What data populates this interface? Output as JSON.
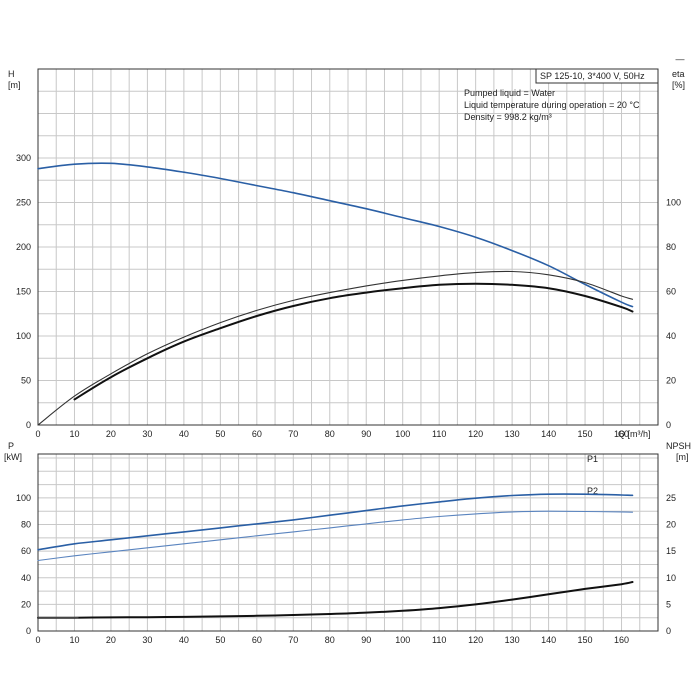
{
  "corner_mark": "—",
  "chart_data": [
    {
      "type": "line",
      "title": "SP 125-10, 3*400 V, 50Hz",
      "notes": [
        "Pumped liquid = Water",
        "Liquid temperature during operation = 20 °C",
        "Density = 998.2 kg/m³"
      ],
      "xlabel": "Q [m³/h]",
      "ylabel": [
        "H",
        "[m]"
      ],
      "y2label": [
        "eta",
        "[%]"
      ],
      "xlim": [
        0,
        170
      ],
      "ylim": [
        0,
        400
      ],
      "y2lim": [
        0,
        160
      ],
      "xticks": [
        0,
        10,
        20,
        30,
        40,
        50,
        60,
        70,
        80,
        90,
        100,
        110,
        120,
        130,
        140,
        150,
        160
      ],
      "yticks": [
        0,
        50,
        100,
        150,
        200,
        250,
        300
      ],
      "y2ticks": [
        0,
        20,
        40,
        60,
        80,
        100
      ],
      "grid": true,
      "series": [
        {
          "axis": "y",
          "color": "#2a5fa5",
          "width": 1.6,
          "x": [
            0,
            10,
            20,
            30,
            40,
            50,
            60,
            70,
            80,
            90,
            100,
            110,
            120,
            130,
            140,
            150,
            160,
            163
          ],
          "y": [
            288,
            293,
            294,
            290,
            284,
            277,
            269,
            261,
            252,
            243,
            233,
            223,
            211,
            196,
            179,
            158,
            138,
            133
          ]
        },
        {
          "axis": "y2",
          "color": "#333333",
          "width": 1.1,
          "x": [
            0,
            10,
            20,
            30,
            40,
            50,
            60,
            70,
            80,
            90,
            100,
            110,
            120,
            130,
            140,
            150,
            160,
            163
          ],
          "y": [
            0,
            13,
            23,
            32,
            39.5,
            46,
            51.5,
            56,
            59.5,
            62.5,
            65,
            67,
            68.5,
            69,
            67.5,
            64,
            58,
            56.5
          ]
        },
        {
          "axis": "y2",
          "color": "#111111",
          "width": 2.0,
          "x": [
            10,
            20,
            30,
            40,
            50,
            60,
            70,
            80,
            90,
            100,
            110,
            120,
            130,
            140,
            150,
            160,
            163
          ],
          "y": [
            11.5,
            21.5,
            30,
            37.5,
            43.5,
            49,
            53.5,
            57,
            59.5,
            61.5,
            63,
            63.5,
            63,
            61.5,
            58,
            53,
            51
          ]
        }
      ]
    },
    {
      "type": "line",
      "xlabel": "",
      "ylabel": [
        "P",
        "[kW]"
      ],
      "y2label": [
        "NPSH",
        "[m]"
      ],
      "xlim": [
        0,
        170
      ],
      "ylim": [
        0,
        133
      ],
      "y2lim": [
        0,
        33.25
      ],
      "xticks": [
        0,
        10,
        20,
        30,
        40,
        50,
        60,
        70,
        80,
        90,
        100,
        110,
        120,
        130,
        140,
        150,
        160
      ],
      "yticks": [
        0,
        20,
        40,
        60,
        80,
        100
      ],
      "y2ticks": [
        0,
        5,
        10,
        15,
        20,
        25
      ],
      "grid": true,
      "series": [
        {
          "name": "P1",
          "axis": "y",
          "color": "#2a5fa5",
          "width": 1.6,
          "x": [
            0,
            10,
            20,
            30,
            40,
            50,
            60,
            70,
            80,
            90,
            100,
            110,
            120,
            130,
            140,
            150,
            160,
            163
          ],
          "y": [
            61,
            65.5,
            68.5,
            71.5,
            74.5,
            77.5,
            80.5,
            83.5,
            87,
            90.5,
            94,
            97,
            99.8,
            101.8,
            102.8,
            102.8,
            102.2,
            102
          ]
        },
        {
          "name": "P2",
          "axis": "y",
          "color": "#5a84bf",
          "width": 1.1,
          "x": [
            0,
            10,
            20,
            30,
            40,
            50,
            60,
            70,
            80,
            90,
            100,
            110,
            120,
            130,
            140,
            150,
            160,
            163
          ],
          "y": [
            53,
            56.5,
            59.5,
            62.5,
            65.5,
            68.5,
            71.5,
            74.5,
            77.5,
            80.5,
            83.5,
            86,
            88,
            89.5,
            90,
            89.8,
            89.5,
            89.3
          ]
        },
        {
          "axis": "y2",
          "color": "#111111",
          "width": 2.0,
          "x": [
            0,
            10,
            20,
            30,
            40,
            50,
            60,
            70,
            80,
            90,
            100,
            110,
            120,
            130,
            140,
            150,
            160,
            163
          ],
          "y": [
            2.5,
            2.5,
            2.55,
            2.6,
            2.65,
            2.75,
            2.85,
            3.0,
            3.2,
            3.45,
            3.8,
            4.3,
            5.0,
            5.9,
            6.9,
            7.9,
            8.8,
            9.2
          ]
        },
        {
          "axis": "y2",
          "color": "#555555",
          "width": 1.0,
          "x": [
            0,
            11
          ],
          "y": [
            2.5,
            2.5
          ]
        }
      ]
    }
  ]
}
